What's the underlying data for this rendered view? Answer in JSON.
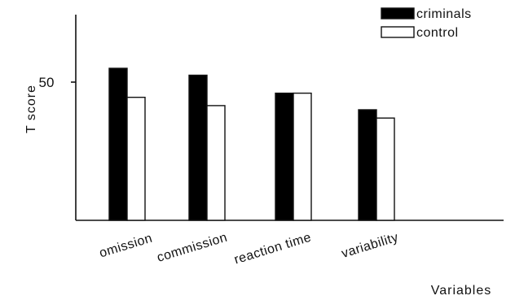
{
  "chart_data": {
    "type": "bar",
    "title": "",
    "xlabel": "Variables",
    "ylabel": "T score",
    "categories": [
      "omission",
      "commission",
      "reaction time",
      "variability"
    ],
    "yticks": [
      50
    ],
    "ylim": [
      0,
      75
    ],
    "grid": false,
    "legend_position": "top-right",
    "series": [
      {
        "name": "criminals",
        "values": [
          55,
          52.5,
          46,
          40
        ],
        "color": "#000000"
      },
      {
        "name": "control",
        "values": [
          44.5,
          41.5,
          46,
          37
        ],
        "color": "#ffffff"
      }
    ]
  }
}
